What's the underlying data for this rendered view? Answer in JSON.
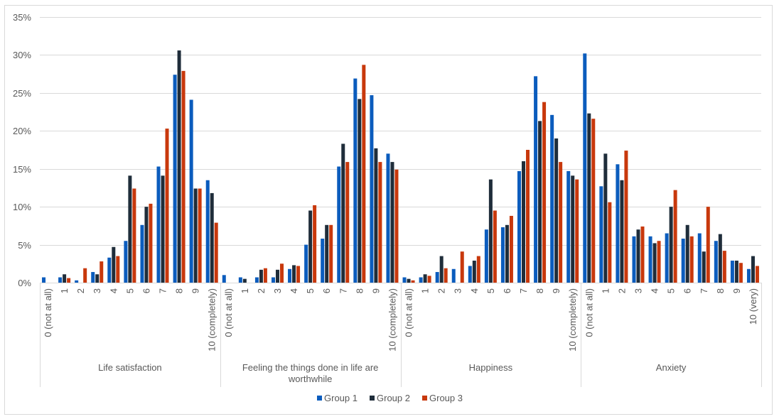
{
  "chart_data": {
    "type": "bar",
    "title": "",
    "xlabel": "",
    "ylabel": "",
    "ylim": [
      0,
      35
    ],
    "yticks": [
      "0%",
      "5%",
      "10%",
      "15%",
      "20%",
      "25%",
      "30%",
      "35%"
    ],
    "ytick_values": [
      0,
      5,
      10,
      15,
      20,
      25,
      30,
      35
    ],
    "grid": true,
    "legend_position": "bottom",
    "colors": {
      "Group 1": "#0b5cbd",
      "Group 2": "#1f2d3a",
      "Group 3": "#c8380c"
    },
    "groups": [
      {
        "name": "Life satisfaction",
        "categories": [
          "0 (not at all)",
          "1",
          "2",
          "3",
          "4",
          "5",
          "6",
          "7",
          "8",
          "9",
          "10 (completely)"
        ],
        "series": [
          {
            "name": "Group 1",
            "values": [
              0.7,
              0.7,
              0.3,
              1.4,
              3.3,
              5.5,
              7.6,
              15.3,
              27.4,
              24.1,
              13.5
            ]
          },
          {
            "name": "Group 2",
            "values": [
              0,
              1.1,
              0,
              1.1,
              4.7,
              14.1,
              10.0,
              14.1,
              30.6,
              12.4,
              11.8
            ]
          },
          {
            "name": "Group 3",
            "values": [
              0,
              0.6,
              1.9,
              2.8,
              3.5,
              12.4,
              10.4,
              20.3,
              27.9,
              12.4,
              7.9
            ]
          }
        ]
      },
      {
        "name": "Feeling the things done in life are worthwhile",
        "name_lines": [
          "Feeling the things done in life are",
          "worthwhile"
        ],
        "categories": [
          "0 (not at all)",
          "1",
          "2",
          "3",
          "4",
          "5",
          "6",
          "7",
          "8",
          "9",
          "10 (completely)"
        ],
        "series": [
          {
            "name": "Group 1",
            "values": [
              1.0,
              0.7,
              0.7,
              0.7,
              1.8,
              5.0,
              5.8,
              15.3,
              26.9,
              24.7,
              17.0
            ]
          },
          {
            "name": "Group 2",
            "values": [
              0,
              0.5,
              1.7,
              1.7,
              2.3,
              9.5,
              7.6,
              18.3,
              24.2,
              17.7,
              15.9
            ]
          },
          {
            "name": "Group 3",
            "values": [
              0,
              0,
              1.9,
              2.5,
              2.2,
              10.2,
              7.6,
              15.9,
              28.7,
              15.9,
              14.9
            ]
          }
        ]
      },
      {
        "name": "Happiness",
        "categories": [
          "0 (not at all)",
          "1",
          "2",
          "3",
          "4",
          "5",
          "6",
          "7",
          "8",
          "9",
          "10 (completely)"
        ],
        "series": [
          {
            "name": "Group 1",
            "values": [
              0.7,
              0.7,
              1.4,
              1.8,
              2.2,
              7.0,
              7.3,
              14.7,
              27.2,
              22.1,
              14.7
            ]
          },
          {
            "name": "Group 2",
            "values": [
              0.5,
              1.1,
              3.5,
              0,
              2.9,
              13.6,
              7.6,
              16.0,
              21.3,
              19.0,
              14.1
            ]
          },
          {
            "name": "Group 3",
            "values": [
              0.3,
              0.9,
              1.9,
              4.1,
              3.5,
              9.5,
              8.8,
              17.5,
              23.8,
              15.9,
              13.6
            ]
          }
        ]
      },
      {
        "name": "Anxiety",
        "categories": [
          "0 (not at all)",
          "1",
          "2",
          "3",
          "4",
          "5",
          "6",
          "7",
          "8",
          "9",
          "10 (very)"
        ],
        "series": [
          {
            "name": "Group 1",
            "values": [
              30.2,
              12.7,
              15.6,
              6.1,
              6.1,
              6.5,
              5.8,
              6.5,
              5.5,
              2.9,
              1.8
            ]
          },
          {
            "name": "Group 2",
            "values": [
              22.3,
              17.0,
              13.5,
              7.0,
              5.2,
              10.0,
              7.6,
              4.1,
              6.4,
              2.9,
              3.5
            ]
          },
          {
            "name": "Group 3",
            "values": [
              21.6,
              10.6,
              17.4,
              7.4,
              5.5,
              12.2,
              6.1,
              10.0,
              4.2,
              2.6,
              2.2
            ]
          }
        ]
      }
    ],
    "legend": [
      "Group 1",
      "Group 2",
      "Group 3"
    ]
  }
}
